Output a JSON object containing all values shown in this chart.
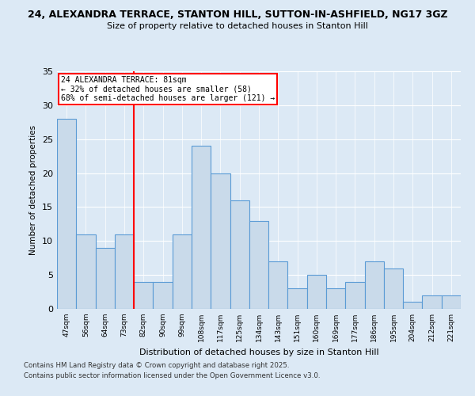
{
  "title_line1": "24, ALEXANDRA TERRACE, STANTON HILL, SUTTON-IN-ASHFIELD, NG17 3GZ",
  "title_line2": "Size of property relative to detached houses in Stanton Hill",
  "xlabel": "Distribution of detached houses by size in Stanton Hill",
  "ylabel": "Number of detached properties",
  "categories": [
    "47sqm",
    "56sqm",
    "64sqm",
    "73sqm",
    "82sqm",
    "90sqm",
    "99sqm",
    "108sqm",
    "117sqm",
    "125sqm",
    "134sqm",
    "143sqm",
    "151sqm",
    "160sqm",
    "169sqm",
    "177sqm",
    "186sqm",
    "195sqm",
    "204sqm",
    "212sqm",
    "221sqm"
  ],
  "values": [
    28,
    11,
    9,
    11,
    4,
    4,
    11,
    24,
    20,
    16,
    13,
    7,
    3,
    5,
    3,
    4,
    7,
    6,
    1,
    2,
    2
  ],
  "bar_color": "#c9daea",
  "bar_edge_color": "#5b9bd5",
  "background_color": "#dce9f5",
  "property_line_index": 4,
  "annotation_text": "24 ALEXANDRA TERRACE: 81sqm\n← 32% of detached houses are smaller (58)\n68% of semi-detached houses are larger (121) →",
  "annotation_box_color": "white",
  "annotation_box_edge": "red",
  "red_line_color": "red",
  "ylim": [
    0,
    35
  ],
  "yticks": [
    0,
    5,
    10,
    15,
    20,
    25,
    30,
    35
  ],
  "footnote_line1": "Contains HM Land Registry data © Crown copyright and database right 2025.",
  "footnote_line2": "Contains public sector information licensed under the Open Government Licence v3.0."
}
